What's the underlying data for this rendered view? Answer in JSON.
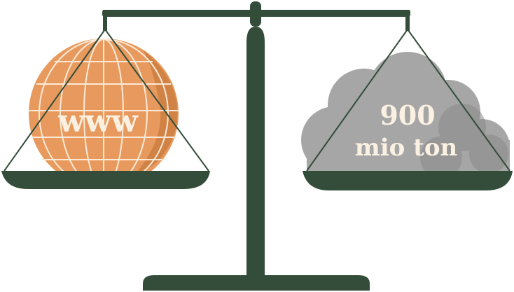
{
  "illustration": {
    "left_pan": {
      "label": "www"
    },
    "right_pan": {
      "label_line1": "900",
      "label_line2": "mio ton"
    }
  },
  "colors": {
    "scale": "#344d3a",
    "globe": "#e89a5e",
    "globe_shadow": "#c97a3e",
    "globe_lines": "#fbe9d6",
    "cloud": "#a6a6a6",
    "cloud_shadow": "#8a8a8a",
    "label_text": "#fbf1e2",
    "background": "#ffffff"
  },
  "icons": {
    "left": "globe-icon",
    "right": "cloud-icon",
    "scale": "balance-scale-icon"
  }
}
